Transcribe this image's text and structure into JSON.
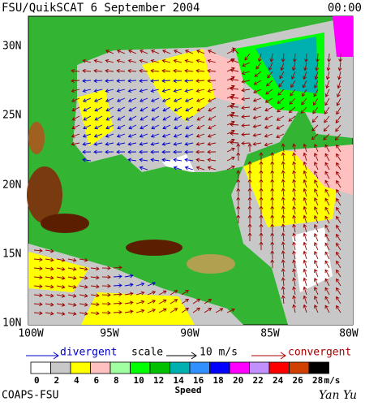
{
  "header": {
    "title": "FSU/QuikSCAT 6 September 2004",
    "time": "00:00"
  },
  "map": {
    "lat_labels": [
      "30N",
      "25N",
      "20N",
      "15N",
      "10N"
    ],
    "lon_labels": [
      "100W",
      "95W",
      "90W",
      "85W",
      "80W"
    ]
  },
  "legend": {
    "divergent": "divergent",
    "scale": "scale",
    "scale_value": "10 m/s",
    "convergent": "convergent"
  },
  "colorbar": {
    "labels": [
      0,
      2,
      4,
      6,
      8,
      10,
      12,
      14,
      16,
      18,
      20,
      22,
      24,
      26,
      28
    ],
    "unit": "m/s",
    "title": "Speed"
  },
  "footer": {
    "credit": "COAPS-FSU",
    "signature": "Yan Yu"
  }
}
